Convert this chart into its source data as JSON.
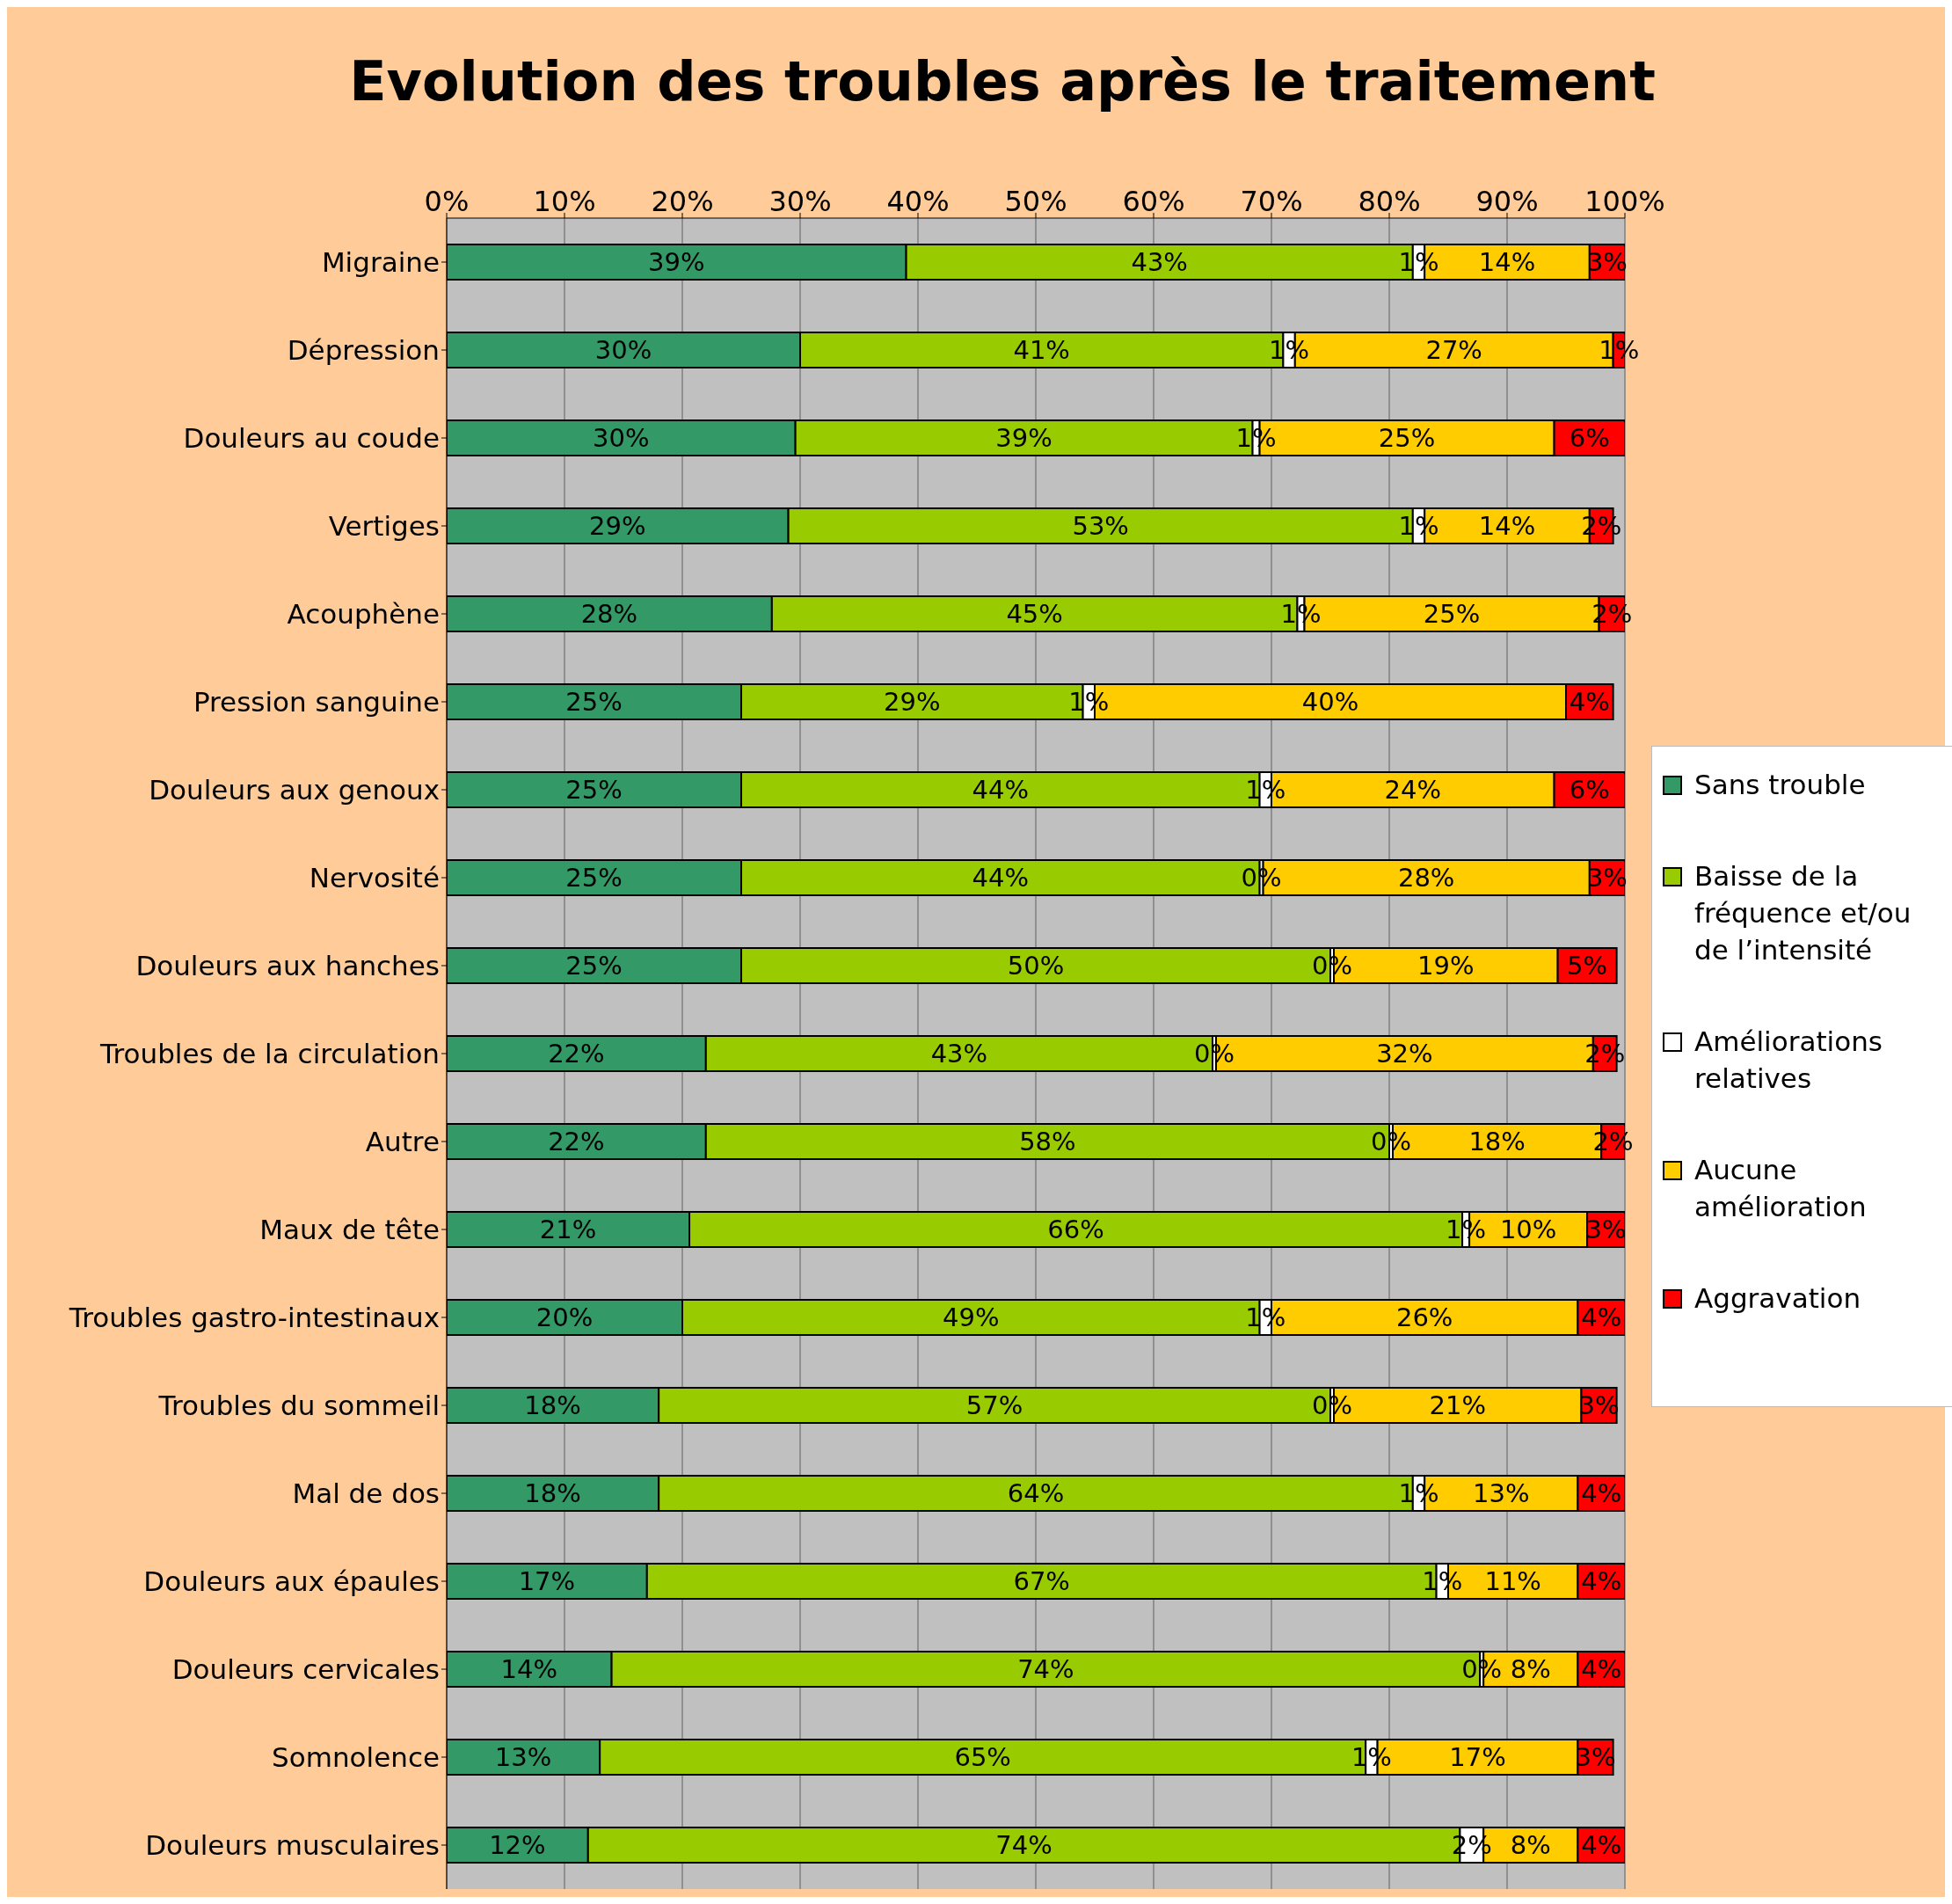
{
  "chart_data": {
    "type": "bar",
    "orientation": "horizontal",
    "stacked": true,
    "title": "Evolution des troubles après le traitement",
    "categories": [
      "Migraine",
      "Dépression",
      "Douleurs au coude",
      "Vertiges",
      "Acouphène",
      "Pression sanguine",
      "Douleurs aux genoux",
      "Nervosité",
      "Douleurs aux hanches",
      "Troubles de la circulation",
      "Autre",
      "Maux de tête",
      "Troubles gastro-intestinaux",
      "Troubles du sommeil",
      "Mal de dos",
      "Douleurs aux épaules",
      "Douleurs cervicales",
      "Somnolence",
      "Douleurs musculaires"
    ],
    "series": [
      {
        "name": "Sans trouble",
        "color": "#339966",
        "values": [
          39,
          30,
          29.6,
          29,
          27.6,
          25,
          25,
          25,
          25,
          22,
          22,
          20.6,
          20,
          18,
          18,
          17,
          14,
          13,
          12
        ],
        "value_labels": [
          "39%",
          "30%",
          "30%",
          "29%",
          "28%",
          "25%",
          "25%",
          "25%",
          "25%",
          "22%",
          "22%",
          "21%",
          "20%",
          "18%",
          "18%",
          "17%",
          "14%",
          "13%",
          "12%"
        ]
      },
      {
        "name": "Baisse de la fréquence et/ou de l’intensité",
        "color": "#99cc00",
        "values": [
          43,
          41,
          38.8,
          53,
          44.6,
          29,
          44,
          44,
          50,
          43,
          58,
          65.6,
          49,
          57,
          64,
          67,
          73.7,
          65,
          74
        ],
        "value_labels": [
          "43%",
          "41%",
          "39%",
          "53%",
          "45%",
          "29%",
          "44%",
          "44%",
          "50%",
          "43%",
          "58%",
          "66%",
          "49%",
          "57%",
          "64%",
          "67%",
          "74%",
          "65%",
          "74%"
        ]
      },
      {
        "name": "Améliorations relatives",
        "color": "#ffffff",
        "values": [
          1,
          1,
          0.6,
          1,
          0.6,
          1,
          1,
          0.3,
          0.3,
          0.3,
          0.3,
          0.6,
          1,
          0.3,
          1,
          1,
          0.3,
          1,
          2
        ],
        "value_labels": [
          "1%",
          "1%",
          "1%",
          "1%",
          "1%",
          "1%",
          "1%",
          "0%",
          "0%",
          "0%",
          "0%",
          "1%",
          "1%",
          "0%",
          "1%",
          "1%",
          "0%",
          "1%",
          "2%"
        ]
      },
      {
        "name": "Aucune amélioration",
        "color": "#ffcc00",
        "values": [
          14,
          27,
          25,
          14,
          25,
          40,
          24,
          27.7,
          19,
          32,
          17.7,
          10,
          26,
          21,
          13,
          11,
          8,
          17,
          8
        ],
        "value_labels": [
          "14%",
          "27%",
          "25%",
          "14%",
          "25%",
          "40%",
          "24%",
          "28%",
          "19%",
          "32%",
          "18%",
          "10%",
          "26%",
          "21%",
          "13%",
          "11%",
          "8%",
          "17%",
          "8%"
        ]
      },
      {
        "name": "Aggravation",
        "color": "#ff0000",
        "values": [
          3,
          1,
          6,
          2,
          2.2,
          4,
          6,
          3,
          5,
          2,
          2,
          3.2,
          4,
          3,
          4,
          4,
          4,
          3,
          4
        ],
        "value_labels": [
          "3%",
          "1%",
          "6%",
          "2%",
          "2%",
          "4%",
          "6%",
          "3%",
          "5%",
          "2%",
          "2%",
          "3%",
          "4%",
          "3%",
          "4%",
          "4%",
          "4%",
          "3%",
          "4%"
        ]
      }
    ],
    "xlim": [
      0,
      100
    ],
    "xticks": [
      {
        "value": 0,
        "label": "0%"
      },
      {
        "value": 10,
        "label": "10%"
      },
      {
        "value": 20,
        "label": "20%"
      },
      {
        "value": 30,
        "label": "30%"
      },
      {
        "value": 40,
        "label": "40%"
      },
      {
        "value": 50,
        "label": "50%"
      },
      {
        "value": 60,
        "label": "60%"
      },
      {
        "value": 70,
        "label": "70%"
      },
      {
        "value": 80,
        "label": "80%"
      },
      {
        "value": 90,
        "label": "90%"
      },
      {
        "value": 100,
        "label": "100%"
      }
    ],
    "grid": "x",
    "legend": "right"
  }
}
